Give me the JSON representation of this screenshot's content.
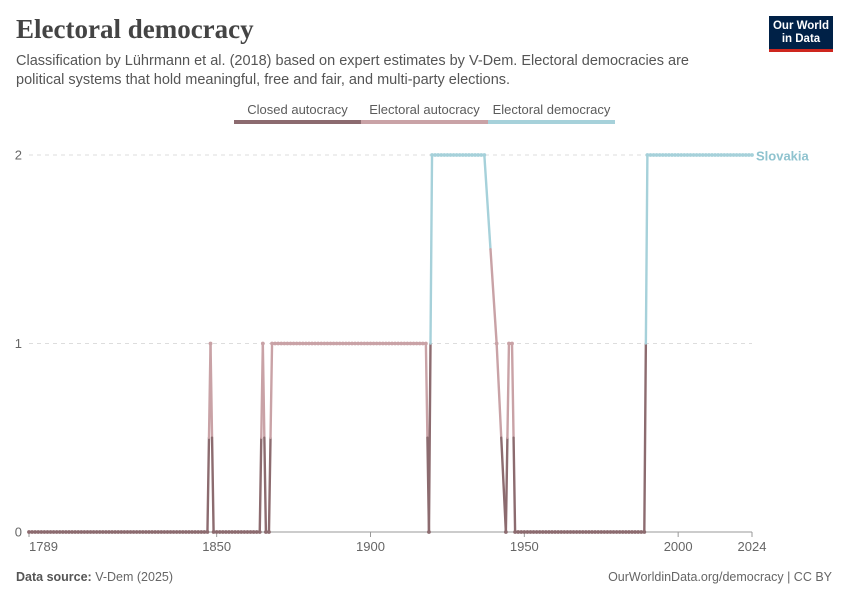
{
  "header": {
    "title": "Electoral democracy",
    "subtitle": "Classification by Lührmann et al. (2018) based on expert estimates by V-Dem. Electoral democracies are political systems that hold meaningful, free and fair, and multi-party elections.",
    "logo_line1": "Our World",
    "logo_line2": "in Data"
  },
  "legend": [
    {
      "label": "Closed autocracy",
      "color": "#8c6b6f"
    },
    {
      "label": "Electoral autocracy",
      "color": "#c9a2a6"
    },
    {
      "label": "Electoral democracy",
      "color": "#a6d1da"
    }
  ],
  "footer": {
    "source_label": "Data source:",
    "source_value": "V-Dem (2025)",
    "right": "OurWorldinData.org/democracy | CC BY"
  },
  "chart_data": {
    "type": "line",
    "title": "Electoral democracy",
    "xlabel": "",
    "ylabel": "",
    "xlim": [
      1789,
      2024
    ],
    "ylim": [
      0,
      2
    ],
    "x_ticks": [
      1789,
      1850,
      1900,
      1950,
      2000,
      2024
    ],
    "y_ticks": [
      0,
      1,
      2
    ],
    "grid": "horizontal dashed",
    "series": [
      {
        "name": "Slovakia",
        "label": "Slovakia",
        "color": "#8fc3cf",
        "segments": [
          {
            "from": 1789,
            "to": 1847,
            "value": 0
          },
          {
            "from": 1848,
            "to": 1848,
            "value": 1
          },
          {
            "from": 1849,
            "to": 1864,
            "value": 0
          },
          {
            "from": 1865,
            "to": 1865,
            "value": 1
          },
          {
            "from": 1866,
            "to": 1867,
            "value": 0
          },
          {
            "from": 1868,
            "to": 1918,
            "value": 1
          },
          {
            "from": 1919,
            "to": 1919,
            "value": 0
          },
          {
            "from": 1920,
            "to": 1937,
            "value": 2
          },
          {
            "from": 1941,
            "to": 1941,
            "value": 1
          },
          {
            "from": 1944,
            "to": 1944,
            "value": 0
          },
          {
            "from": 1945,
            "to": 1946,
            "value": 1
          },
          {
            "from": 1947,
            "to": 1989,
            "value": 0
          },
          {
            "from": 1990,
            "to": 2024,
            "value": 2
          }
        ]
      }
    ]
  }
}
